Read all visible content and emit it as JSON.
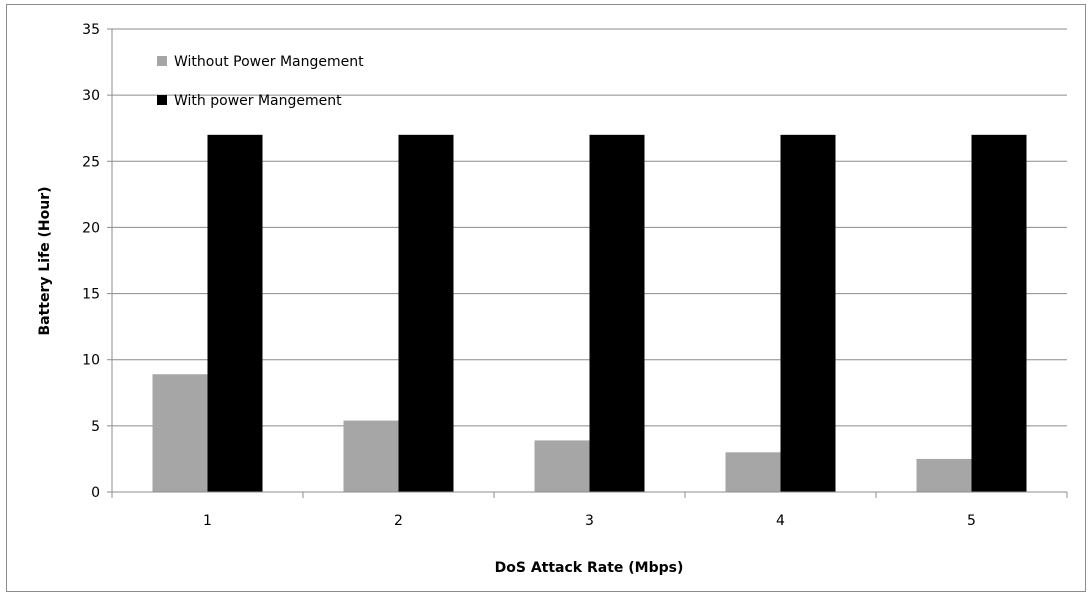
{
  "chart_data": {
    "type": "bar",
    "title": "",
    "xlabel": "DoS Attack Rate (Mbps)",
    "ylabel": "Battery Life (Hour)",
    "categories": [
      "1",
      "2",
      "3",
      "4",
      "5"
    ],
    "ylim": [
      0,
      35
    ],
    "yticks": [
      0,
      5,
      10,
      15,
      20,
      25,
      30,
      35
    ],
    "grid": true,
    "legend_position": "top-left",
    "series": [
      {
        "name": "Without Power Mangement",
        "color": "#a6a6a6",
        "values": [
          8.9,
          5.4,
          3.9,
          3.0,
          2.5
        ]
      },
      {
        "name": "With power Mangement",
        "color": "#000000",
        "values": [
          27,
          27,
          27,
          27,
          27
        ]
      }
    ]
  }
}
